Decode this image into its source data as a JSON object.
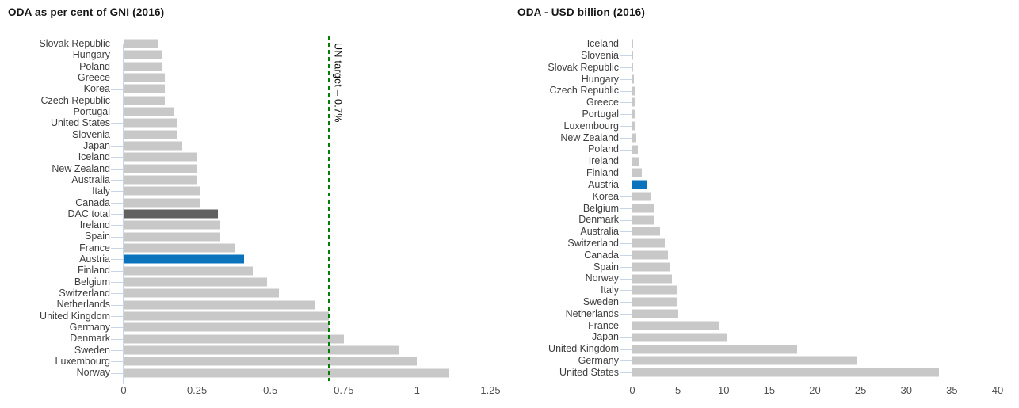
{
  "page": {
    "background": "#ffffff"
  },
  "chart_data": [
    {
      "type": "bar",
      "orientation": "horizontal",
      "title": "ODA as per cent of GNI (2016)",
      "categories": [
        "Slovak Republic",
        "Hungary",
        "Poland",
        "Greece",
        "Korea",
        "Czech Republic",
        "Portugal",
        "United States",
        "Slovenia",
        "Japan",
        "Iceland",
        "New Zealand",
        "Australia",
        "Italy",
        "Canada",
        "DAC total",
        "Ireland",
        "Spain",
        "France",
        "Austria",
        "Finland",
        "Belgium",
        "Switzerland",
        "Netherlands",
        "United Kingdom",
        "Germany",
        "Denmark",
        "Sweden",
        "Luxembourg",
        "Norway"
      ],
      "values": [
        0.12,
        0.13,
        0.13,
        0.14,
        0.14,
        0.14,
        0.17,
        0.18,
        0.18,
        0.2,
        0.25,
        0.25,
        0.25,
        0.26,
        0.26,
        0.32,
        0.33,
        0.33,
        0.38,
        0.41,
        0.44,
        0.49,
        0.53,
        0.65,
        0.7,
        0.7,
        0.75,
        0.94,
        1.0,
        1.11
      ],
      "xlabel": "",
      "ylabel": "",
      "xlim": [
        0,
        1.25
      ],
      "x_tick_labels": [
        "0",
        "0.25",
        "0.5",
        "0.75",
        "1",
        "1.25"
      ],
      "x_tick_values": [
        0,
        0.25,
        0.5,
        0.75,
        1,
        1.25
      ],
      "grid": false,
      "legend": null,
      "bar_color": "#c8c8c8",
      "highlight_colors": {
        "Austria": "#0b72bc",
        "DAC total": "#616161"
      },
      "annotation": {
        "label": "UN target – 0.7%",
        "x": 0.7,
        "line_color": "#008000",
        "line_style": "dashed"
      }
    },
    {
      "type": "bar",
      "orientation": "horizontal",
      "title": "ODA - USD billion (2016)",
      "categories": [
        "Iceland",
        "Slovenia",
        "Slovak Republic",
        "Hungary",
        "Czech Republic",
        "Greece",
        "Portugal",
        "Luxembourg",
        "New Zealand",
        "Poland",
        "Ireland",
        "Finland",
        "Austria",
        "Korea",
        "Belgium",
        "Denmark",
        "Australia",
        "Switzerland",
        "Canada",
        "Spain",
        "Norway",
        "Italy",
        "Sweden",
        "Netherlands",
        "France",
        "Japan",
        "United Kingdom",
        "Germany",
        "United States"
      ],
      "values": [
        0.06,
        0.08,
        0.11,
        0.16,
        0.26,
        0.26,
        0.34,
        0.38,
        0.44,
        0.6,
        0.8,
        1.06,
        1.57,
        1.96,
        2.3,
        2.37,
        3.03,
        3.56,
        3.93,
        4.1,
        4.35,
        4.86,
        4.87,
        4.99,
        9.5,
        10.37,
        18.01,
        24.64,
        33.59
      ],
      "xlabel": "",
      "ylabel": "",
      "xlim": [
        0,
        40
      ],
      "x_tick_labels": [
        "0",
        "5",
        "10",
        "15",
        "20",
        "25",
        "30",
        "35",
        "40"
      ],
      "x_tick_values": [
        0,
        5,
        10,
        15,
        20,
        25,
        30,
        35,
        40
      ],
      "grid": false,
      "legend": null,
      "bar_color": "#c8c8c8",
      "highlight_colors": {
        "Austria": "#0b72bc"
      }
    }
  ]
}
